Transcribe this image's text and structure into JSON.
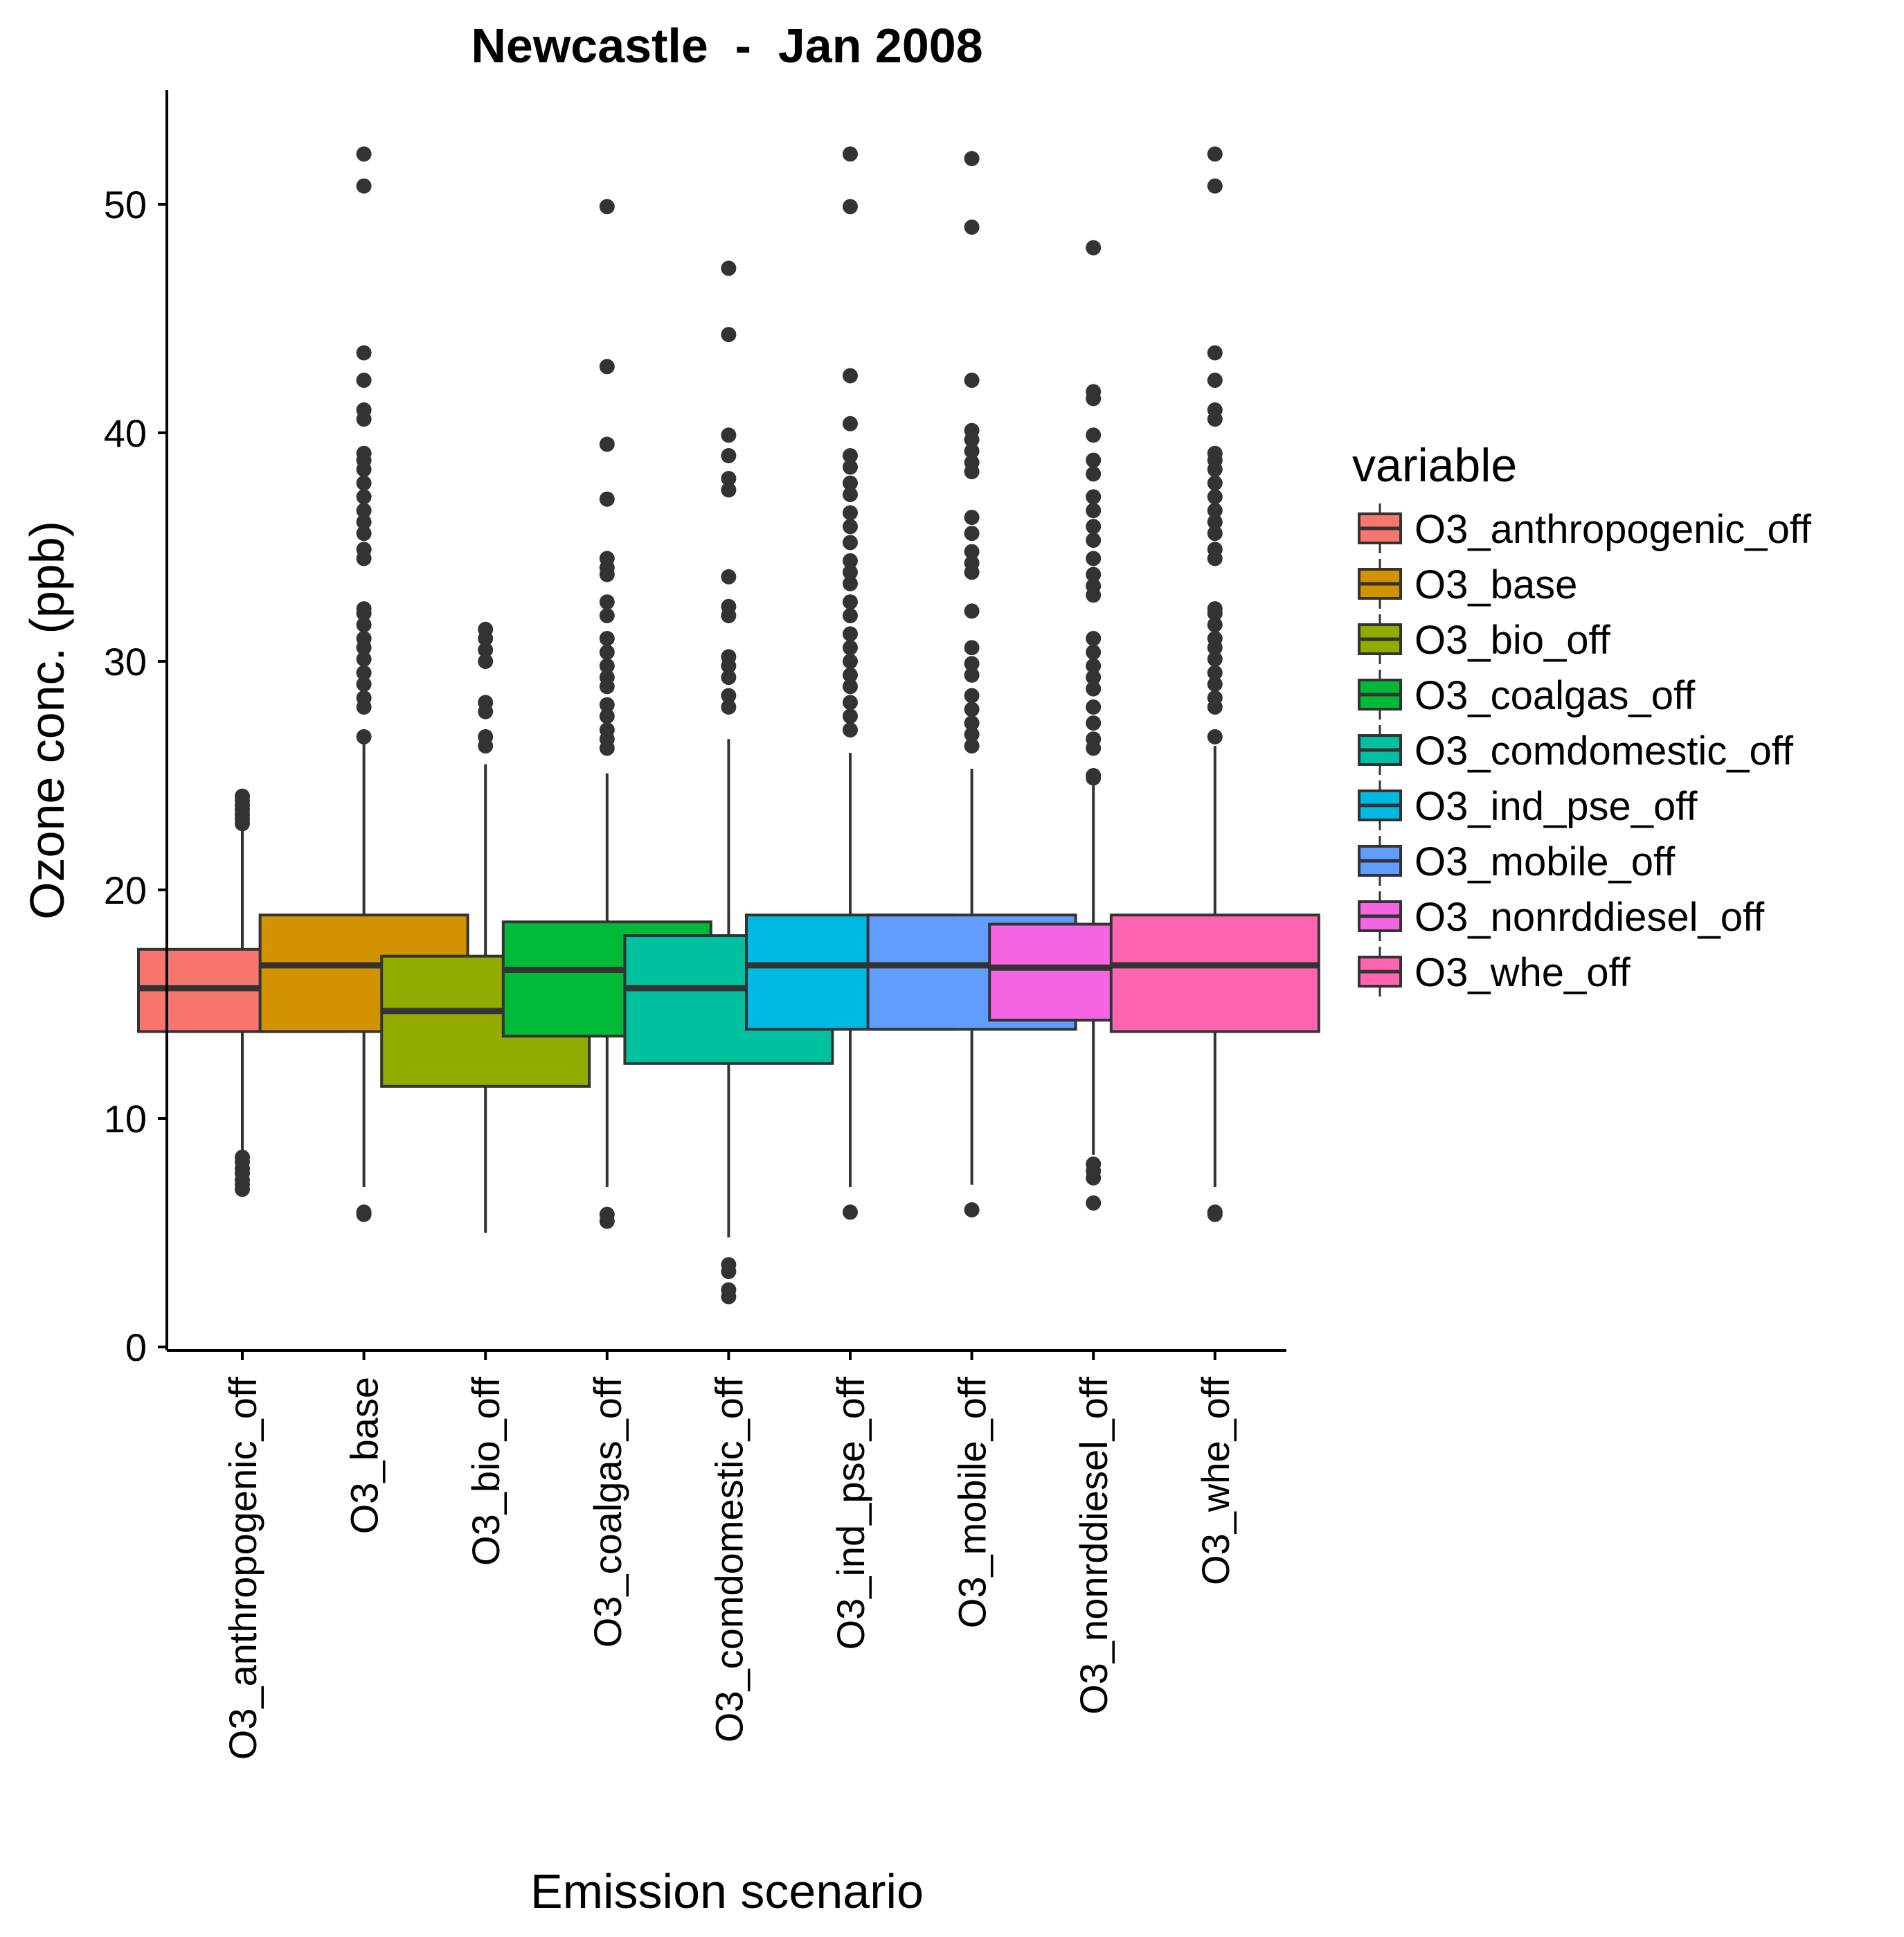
{
  "chart_data": {
    "type": "box",
    "title": "Newcastle  -  Jan 2008",
    "xlabel": "Emission scenario",
    "ylabel": "Ozone conc. (ppb)",
    "ylim": [
      -0.5,
      55
    ],
    "yticks": [
      0,
      10,
      20,
      30,
      40,
      50
    ],
    "grid": false,
    "legend": {
      "title": "variable",
      "placement": "right"
    },
    "categories": [
      "O3_anthropogenic_off",
      "O3_base",
      "O3_bio_off",
      "O3_coalgas_off",
      "O3_comdomestic_off",
      "O3_ind_pse_off",
      "O3_mobile_off",
      "O3_nonrddiesel_off",
      "O3_whe_off"
    ],
    "series": [
      {
        "name": "O3_anthropogenic_off",
        "color": "#F8766D",
        "q1": 13.8,
        "median": 15.7,
        "q3": 17.4,
        "whisker_low": 8.5,
        "whisker_high": 22.7,
        "outliers": [
          6.9,
          7.1,
          7.3,
          7.6,
          7.8,
          8.1,
          8.3,
          22.9,
          23.1,
          23.3,
          23.5,
          23.7,
          23.9,
          24.1
        ]
      },
      {
        "name": "O3_base",
        "color": "#D39200",
        "q1": 13.8,
        "median": 16.7,
        "q3": 18.9,
        "whisker_low": 7.0,
        "whisker_high": 26.4,
        "outliers": [
          5.8,
          5.9,
          26.7,
          28.0,
          28.4,
          29.0,
          29.5,
          30.1,
          30.6,
          31.0,
          31.6,
          32.1,
          32.3,
          34.5,
          34.9,
          35.6,
          36.1,
          36.6,
          37.2,
          37.8,
          38.4,
          38.8,
          39.1,
          40.6,
          41.0,
          42.3,
          43.5,
          50.8,
          52.2
        ]
      },
      {
        "name": "O3_bio_off",
        "color": "#93AA00",
        "q1": 11.4,
        "median": 14.7,
        "q3": 17.1,
        "whisker_low": 5.0,
        "whisker_high": 25.5,
        "outliers": [
          26.3,
          26.7,
          27.8,
          28.2,
          30.0,
          30.5,
          31.0,
          31.4
        ]
      },
      {
        "name": "O3_coalgas_off",
        "color": "#00BA38",
        "q1": 13.6,
        "median": 16.5,
        "q3": 18.6,
        "whisker_low": 7.0,
        "whisker_high": 25.1,
        "outliers": [
          5.5,
          5.8,
          26.2,
          26.6,
          27.0,
          27.6,
          28.1,
          28.9,
          29.3,
          29.8,
          30.4,
          31.0,
          32.0,
          32.6,
          33.8,
          34.1,
          34.5,
          37.1,
          39.5,
          42.9,
          49.9
        ]
      },
      {
        "name": "O3_comdomestic_off",
        "color": "#00C19F",
        "q1": 12.4,
        "median": 15.7,
        "q3": 18.0,
        "whisker_low": 4.8,
        "whisker_high": 26.6,
        "outliers": [
          2.2,
          2.5,
          3.3,
          3.6,
          28.0,
          28.5,
          29.3,
          29.8,
          30.2,
          32.0,
          32.4,
          33.7,
          37.5,
          38.0,
          39.0,
          39.9,
          44.3,
          47.2
        ]
      },
      {
        "name": "O3_ind_pse_off",
        "color": "#00B9E3",
        "q1": 13.9,
        "median": 16.7,
        "q3": 18.9,
        "whisker_low": 7.0,
        "whisker_high": 26.0,
        "outliers": [
          5.9,
          27.0,
          27.6,
          28.2,
          28.9,
          29.4,
          30.0,
          30.6,
          31.2,
          32.0,
          32.6,
          33.4,
          33.9,
          34.4,
          35.2,
          35.9,
          36.5,
          37.3,
          37.8,
          38.5,
          39.0,
          40.4,
          42.5,
          49.9,
          52.2
        ]
      },
      {
        "name": "O3_mobile_off",
        "color": "#619CFF",
        "q1": 13.9,
        "median": 16.7,
        "q3": 18.9,
        "whisker_low": 7.1,
        "whisker_high": 25.3,
        "outliers": [
          6.0,
          26.3,
          26.8,
          27.3,
          27.9,
          28.5,
          29.4,
          29.9,
          30.6,
          32.2,
          33.9,
          34.3,
          34.8,
          35.6,
          36.3,
          38.3,
          38.7,
          39.2,
          39.7,
          40.1,
          42.3,
          49.0,
          52.0
        ]
      },
      {
        "name": "O3_nonrddiesel_off",
        "color": "#F564E3",
        "q1": 14.3,
        "median": 16.6,
        "q3": 18.5,
        "whisker_low": 8.4,
        "whisker_high": 24.6,
        "outliers": [
          6.3,
          7.4,
          7.7,
          8.0,
          24.9,
          25.0,
          26.2,
          26.6,
          27.3,
          28.0,
          28.8,
          29.3,
          29.8,
          30.4,
          31.0,
          32.9,
          33.3,
          33.8,
          34.5,
          35.3,
          35.9,
          36.6,
          37.2,
          38.2,
          38.8,
          39.9,
          41.5,
          41.8,
          48.1
        ]
      },
      {
        "name": "O3_whe_off",
        "color": "#FF64B0",
        "q1": 13.8,
        "median": 16.7,
        "q3": 18.9,
        "whisker_low": 7.0,
        "whisker_high": 26.3,
        "outliers": [
          5.8,
          5.9,
          26.7,
          28.0,
          28.4,
          29.0,
          29.5,
          30.1,
          30.6,
          31.0,
          31.6,
          32.1,
          32.3,
          34.5,
          34.9,
          35.6,
          36.1,
          36.6,
          37.2,
          37.8,
          38.4,
          38.8,
          39.1,
          40.6,
          41.0,
          42.3,
          43.5,
          50.8,
          52.2
        ]
      }
    ]
  }
}
